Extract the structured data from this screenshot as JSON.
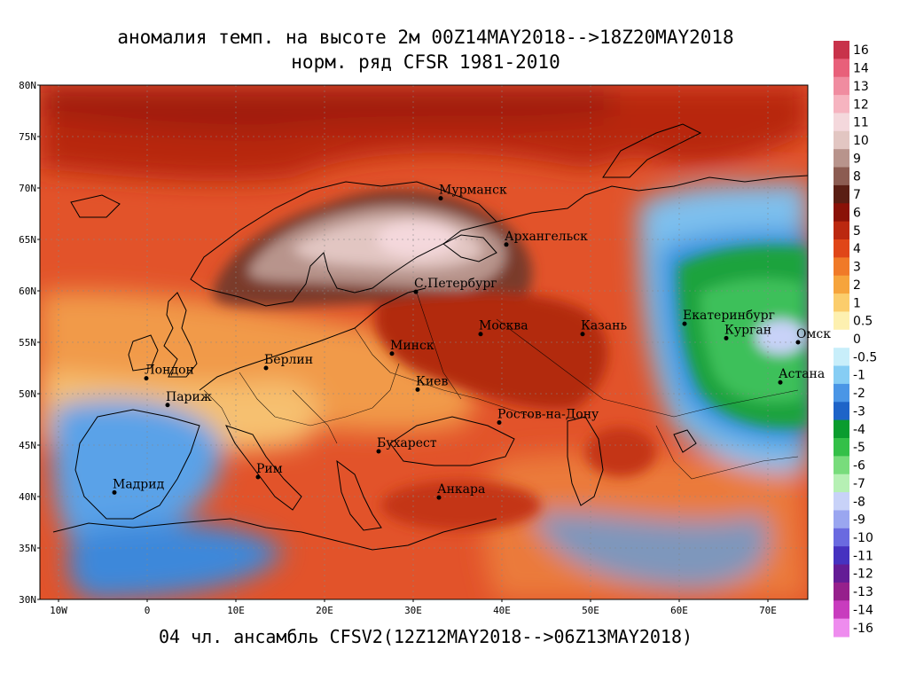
{
  "title": {
    "line1": "аномалия темп. на высоте 2м 00Z14MAY2018-->18Z20MAY2018",
    "line2": "норм. ряд CFSR 1981-2010"
  },
  "footer": "04 чл. ансамбль CFSV2(12Z12MAY2018-->06Z13MAY2018)",
  "map": {
    "lat_labels": [
      "80N",
      "75N",
      "70N",
      "65N",
      "60N",
      "55N",
      "50N",
      "45N",
      "40N",
      "35N",
      "30N"
    ],
    "lon_labels": [
      "10W",
      "0",
      "10E",
      "20E",
      "30E",
      "40E",
      "50E",
      "60E",
      "70E"
    ],
    "cities": [
      {
        "name": "Мурманск",
        "lon": 33.1,
        "lat": 69.0
      },
      {
        "name": "Архангельск",
        "lon": 40.5,
        "lat": 64.5
      },
      {
        "name": "С.Петербург",
        "lon": 30.3,
        "lat": 59.9
      },
      {
        "name": "Москва",
        "lon": 37.6,
        "lat": 55.8
      },
      {
        "name": "Казань",
        "lon": 49.1,
        "lat": 55.8
      },
      {
        "name": "Екатеринбург",
        "lon": 60.6,
        "lat": 56.8
      },
      {
        "name": "Курган",
        "lon": 65.3,
        "lat": 55.4
      },
      {
        "name": "Омск",
        "lon": 73.4,
        "lat": 55.0
      },
      {
        "name": "Астана",
        "lon": 71.4,
        "lat": 51.1
      },
      {
        "name": "Минск",
        "lon": 27.6,
        "lat": 53.9
      },
      {
        "name": "Киев",
        "lon": 30.5,
        "lat": 50.4
      },
      {
        "name": "Берлин",
        "lon": 13.4,
        "lat": 52.5
      },
      {
        "name": "Лондон",
        "lon": -0.1,
        "lat": 51.5
      },
      {
        "name": "Париж",
        "lon": 2.3,
        "lat": 48.9
      },
      {
        "name": "Ростов-на-Дону",
        "lon": 39.7,
        "lat": 47.2
      },
      {
        "name": "Бухарест",
        "lon": 26.1,
        "lat": 44.4
      },
      {
        "name": "Рим",
        "lon": 12.5,
        "lat": 41.9
      },
      {
        "name": "Мадрид",
        "lon": -3.7,
        "lat": 40.4
      },
      {
        "name": "Анкара",
        "lon": 32.9,
        "lat": 39.9
      }
    ]
  },
  "colorbar": {
    "labels": [
      "16",
      "14",
      "13",
      "12",
      "11",
      "10",
      "9",
      "8",
      "7",
      "6",
      "5",
      "4",
      "3",
      "2",
      "1",
      "0.5",
      "0",
      "-0.5",
      "-1",
      "-2",
      "-3",
      "-4",
      "-5",
      "-6",
      "-7",
      "-8",
      "-9",
      "-10",
      "-11",
      "-12",
      "-13",
      "-14",
      "-16"
    ],
    "colors": [
      "#c8324a",
      "#e8607a",
      "#f08ca0",
      "#f6b4c0",
      "#f4d8dc",
      "#e2c6c2",
      "#b8948c",
      "#8c5c52",
      "#5a1e14",
      "#8a1208",
      "#bb2810",
      "#e04618",
      "#f07a28",
      "#f6a43c",
      "#fbcd6c",
      "#fdf0b0",
      "#ffffff",
      "#c8eefa",
      "#86cdf4",
      "#4a96e6",
      "#1e64c8",
      "#0a9c2e",
      "#34c048",
      "#78dc7c",
      "#b6f0b4",
      "#c8d2f8",
      "#9aa6f0",
      "#6a6ae0",
      "#4632c0",
      "#641c96",
      "#96208c",
      "#c83cbe",
      "#ee8cee"
    ]
  }
}
